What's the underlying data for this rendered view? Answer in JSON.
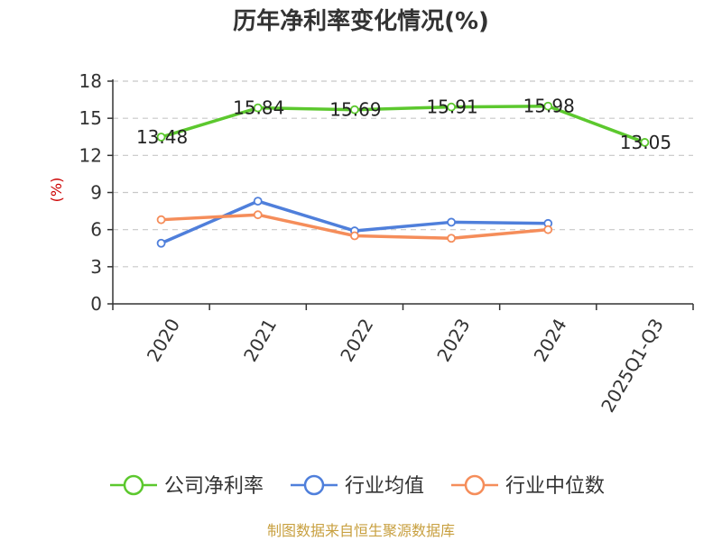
{
  "chart_data": {
    "type": "line",
    "title": "历年净利率变化情况(%)",
    "ylabel": "(%)",
    "categories": [
      "2020",
      "2021",
      "2022",
      "2023",
      "2024",
      "2025Q1-Q3"
    ],
    "yticks": [
      0,
      3,
      6,
      9,
      12,
      15,
      18
    ],
    "ylim": [
      0,
      18
    ],
    "grid": true,
    "legend_position": "bottom",
    "series": [
      {
        "name": "公司净利率",
        "color": "#5cc82e",
        "values": [
          13.48,
          15.84,
          15.69,
          15.91,
          15.98,
          13.05
        ],
        "labels": [
          "13.48",
          "15.84",
          "15.69",
          "15.91",
          "15.98",
          "13.05"
        ]
      },
      {
        "name": "行业均值",
        "color": "#4f7fdb",
        "values": [
          4.9,
          8.3,
          5.9,
          6.6,
          6.5,
          null
        ]
      },
      {
        "name": "行业中位数",
        "color": "#f58d5a",
        "values": [
          6.8,
          7.2,
          5.5,
          5.3,
          6.0,
          null
        ]
      }
    ]
  },
  "colors": {
    "axis": "#333333",
    "grid": "#c8c8c8",
    "unit": "#cc0000",
    "source": "#c8a040"
  },
  "source": "制图数据来自恒生聚源数据库"
}
